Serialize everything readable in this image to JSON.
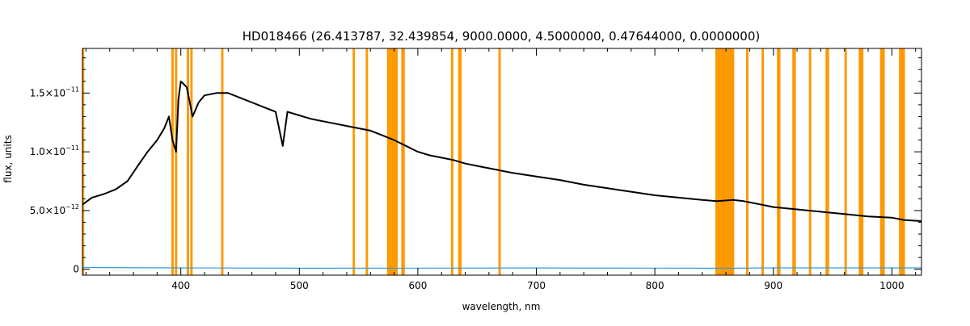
{
  "chart_data": {
    "type": "line",
    "title": "HD018466   (26.413787, 32.439854, 9000.0000, 4.5000000, 0.47644000, 0.0000000)",
    "xlabel": "wavelength, nm",
    "ylabel": "flux, units",
    "xlim": [
      317,
      1025
    ],
    "ylim": [
      -5e-13,
      1.88e-11
    ],
    "x_ticks": [
      400,
      500,
      600,
      700,
      800,
      900,
      1000
    ],
    "x_tick_labels": [
      "400",
      "500",
      "600",
      "700",
      "800",
      "900",
      "1000"
    ],
    "y_ticks": [
      0,
      5e-12,
      1e-11,
      1.5e-11
    ],
    "y_tick_labels": [
      {
        "mantissa": "0",
        "exponent": ""
      },
      {
        "mantissa": "5.0×10",
        "exponent": "−12"
      },
      {
        "mantissa": "1.0×10",
        "exponent": "−11"
      },
      {
        "mantissa": "1.5×10",
        "exponent": "−11"
      }
    ],
    "grid": false,
    "colors": {
      "spectrum": "#000000",
      "error": "#3a9ad9",
      "mask": "#ff9900"
    },
    "series": [
      {
        "role": "spectrum",
        "x": [
          317,
          325,
          335,
          345,
          355,
          365,
          372,
          380,
          386,
          390,
          393,
          396,
          398,
          400,
          405,
          410,
          415,
          420,
          430,
          440,
          450,
          460,
          470,
          480,
          486,
          490,
          500,
          510,
          520,
          530,
          540,
          550,
          560,
          570,
          575,
          580,
          590,
          600,
          610,
          620,
          630,
          640,
          650,
          660,
          670,
          680,
          700,
          720,
          740,
          760,
          780,
          800,
          820,
          840,
          852,
          866,
          875,
          890,
          900,
          920,
          940,
          960,
          980,
          1000,
          1010,
          1025
        ],
        "y": [
          5.5e-12,
          6.1e-12,
          6.4e-12,
          6.8e-12,
          7.5e-12,
          9e-12,
          1e-11,
          1.1e-11,
          1.2e-11,
          1.3e-11,
          1.1e-11,
          1e-11,
          1.45e-11,
          1.6e-11,
          1.55e-11,
          1.3e-11,
          1.42e-11,
          1.48e-11,
          1.5e-11,
          1.5e-11,
          1.46e-11,
          1.42e-11,
          1.38e-11,
          1.34e-11,
          1.05e-11,
          1.34e-11,
          1.31e-11,
          1.28e-11,
          1.26e-11,
          1.24e-11,
          1.22e-11,
          1.2e-11,
          1.18e-11,
          1.14e-11,
          1.12e-11,
          1.1e-11,
          1.05e-11,
          1e-11,
          9.7e-12,
          9.5e-12,
          9.3e-12,
          9e-12,
          8.8e-12,
          8.6e-12,
          8.4e-12,
          8.2e-12,
          7.9e-12,
          7.6e-12,
          7.2e-12,
          6.9e-12,
          6.6e-12,
          6.3e-12,
          6.1e-12,
          5.9e-12,
          5.8e-12,
          5.9e-12,
          5.8e-12,
          5.5e-12,
          5.3e-12,
          5.1e-12,
          4.9e-12,
          4.7e-12,
          4.5e-12,
          4.4e-12,
          4.2e-12,
          4.1e-12
        ]
      },
      {
        "role": "error",
        "x": [
          317,
          400,
          500,
          600,
          700,
          800,
          852,
          866,
          900,
          1000,
          1025
        ],
        "y": [
          1.5e-13,
          1.2e-13,
          9e-14,
          1e-13,
          1.1e-13,
          1e-13,
          9e-14,
          9e-14,
          1.2e-13,
          1.2e-13,
          1.2e-13
        ]
      }
    ],
    "masked_regions": [
      [
        317,
        318.5
      ],
      [
        392,
        394
      ],
      [
        395,
        397
      ],
      [
        405,
        407
      ],
      [
        408,
        410
      ],
      [
        434,
        436
      ],
      [
        545,
        547
      ],
      [
        556,
        558
      ],
      [
        574,
        583
      ],
      [
        586,
        589
      ],
      [
        628,
        630
      ],
      [
        634,
        637
      ],
      [
        668,
        670
      ],
      [
        851,
        867
      ],
      [
        877,
        879
      ],
      [
        890,
        892
      ],
      [
        903,
        906
      ],
      [
        916,
        919
      ],
      [
        930,
        932
      ],
      [
        944,
        947
      ],
      [
        960,
        962
      ],
      [
        972,
        976
      ],
      [
        990,
        994
      ],
      [
        1006,
        1011
      ]
    ]
  }
}
